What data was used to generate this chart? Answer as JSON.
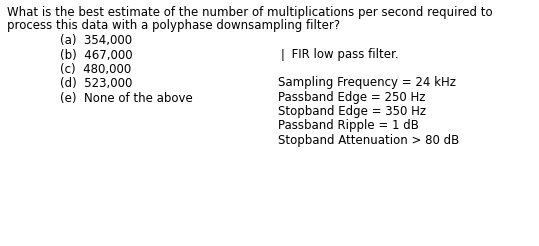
{
  "background_color": "#ffffff",
  "question_line1": "What is the best estimate of the number of multiplications per second required to",
  "question_line2": "process this data with a polyphase downsampling filter?",
  "choices": [
    "(a)  354,000",
    "(b)  467,000",
    "(c)  480,000",
    "(d)  523,000",
    "(e)  None of the above"
  ],
  "right_title": "❘ FIR low pass filter.",
  "right_specs": [
    "Sampling Frequency = 24 kHz",
    "Passband Edge = 250 Hz",
    "Stopband Edge = 350 Hz",
    "Passband Ripple = 1 dB",
    "Stopband Attenuation > 80 dB"
  ],
  "font_size": 8.5,
  "text_color": "#000000",
  "fig_width": 5.39,
  "fig_height": 2.46,
  "dpi": 100
}
